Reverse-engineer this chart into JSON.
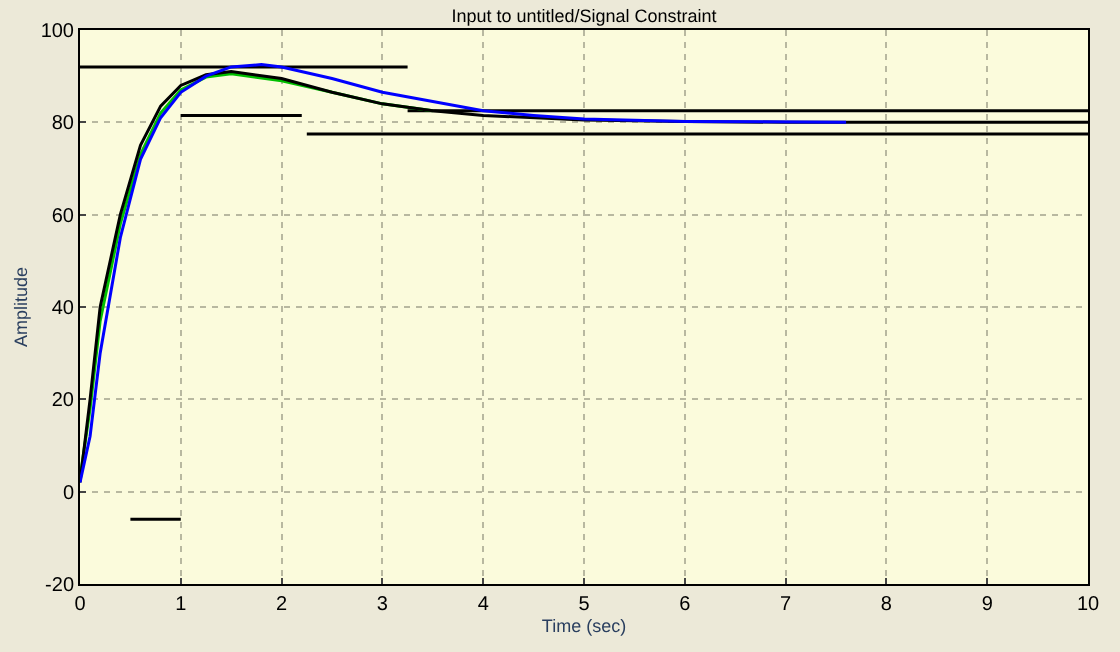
{
  "chart_data": {
    "type": "line",
    "title": "Input to untitled/Signal Constraint",
    "xlabel": "Time (sec)",
    "ylabel": "Amplitude",
    "xlim": [
      0,
      10
    ],
    "xticks": [
      0,
      1,
      2,
      3,
      4,
      5,
      6,
      7,
      8,
      9,
      10
    ],
    "ylim": [
      -20,
      100
    ],
    "yticks": [
      -20,
      0,
      20,
      40,
      60,
      80,
      100
    ],
    "grid": true,
    "marker": "none",
    "line_style": "solid",
    "series": [
      {
        "color": "#000000",
        "x": [
          0,
          3.25
        ],
        "values": [
          92,
          92
        ]
      },
      {
        "color": "#000000",
        "x": [
          3.25,
          10
        ],
        "values": [
          82.5,
          82.5
        ]
      },
      {
        "color": "#000000",
        "x": [
          0.5,
          1
        ],
        "values": [
          -6,
          -6
        ]
      },
      {
        "color": "#000000",
        "x": [
          1,
          2.2
        ],
        "values": [
          81.5,
          81.5
        ]
      },
      {
        "color": "#000000",
        "x": [
          2.25,
          10
        ],
        "values": [
          77.5,
          77.5
        ]
      },
      {
        "color": "#00c000",
        "x": [
          0,
          0.1,
          0.2,
          0.4,
          0.6,
          0.8,
          1,
          1.25,
          1.5,
          2,
          2.5,
          3,
          3.5
        ],
        "values": [
          3,
          18,
          37,
          58,
          73,
          82,
          87,
          89.8,
          90.5,
          89,
          86.5,
          84,
          82.5
        ]
      },
      {
        "color": "#000000",
        "x": [
          0,
          0.1,
          0.2,
          0.4,
          0.6,
          0.8,
          1,
          1.25,
          1.5,
          2,
          2.5,
          3,
          3.5,
          4,
          5,
          6,
          7,
          8,
          10
        ],
        "values": [
          2,
          20,
          40,
          60,
          75,
          83.5,
          88,
          90.3,
          91,
          89.5,
          86.5,
          84,
          82.5,
          81.5,
          80.5,
          80.2,
          80,
          80,
          80
        ]
      },
      {
        "color": "#0000ff",
        "x": [
          0,
          0.1,
          0.2,
          0.4,
          0.6,
          0.8,
          1,
          1.25,
          1.5,
          1.8,
          2,
          2.5,
          3,
          3.5,
          4,
          4.5,
          5,
          6,
          7.6
        ],
        "values": [
          2,
          12,
          30,
          55,
          72,
          81,
          86.5,
          90,
          92,
          92.5,
          92,
          89.5,
          86.5,
          84.5,
          82.5,
          81.5,
          80.7,
          80.2,
          80
        ]
      }
    ]
  }
}
